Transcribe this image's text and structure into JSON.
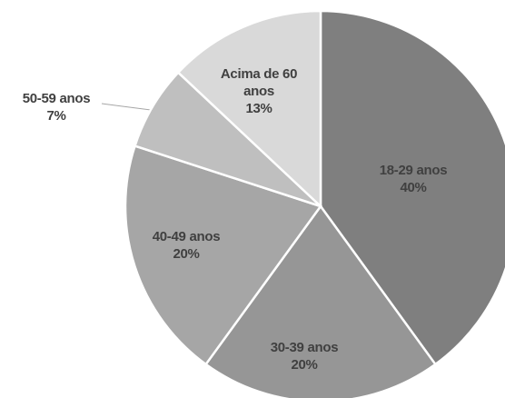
{
  "chart_data": {
    "type": "pie",
    "categories": [
      "18-29 anos",
      "30-39 anos",
      "40-49 anos",
      "50-59 anos",
      "Acima de 60 anos"
    ],
    "values": [
      40,
      20,
      20,
      7,
      13
    ],
    "value_labels": [
      "40%",
      "20%",
      "20%",
      "7%",
      "13%"
    ],
    "colors": [
      "#7f7f7f",
      "#969696",
      "#a6a6a6",
      "#bfbfbf",
      "#d9d9d9"
    ],
    "start_angle": 0,
    "direction": "clockwise"
  }
}
